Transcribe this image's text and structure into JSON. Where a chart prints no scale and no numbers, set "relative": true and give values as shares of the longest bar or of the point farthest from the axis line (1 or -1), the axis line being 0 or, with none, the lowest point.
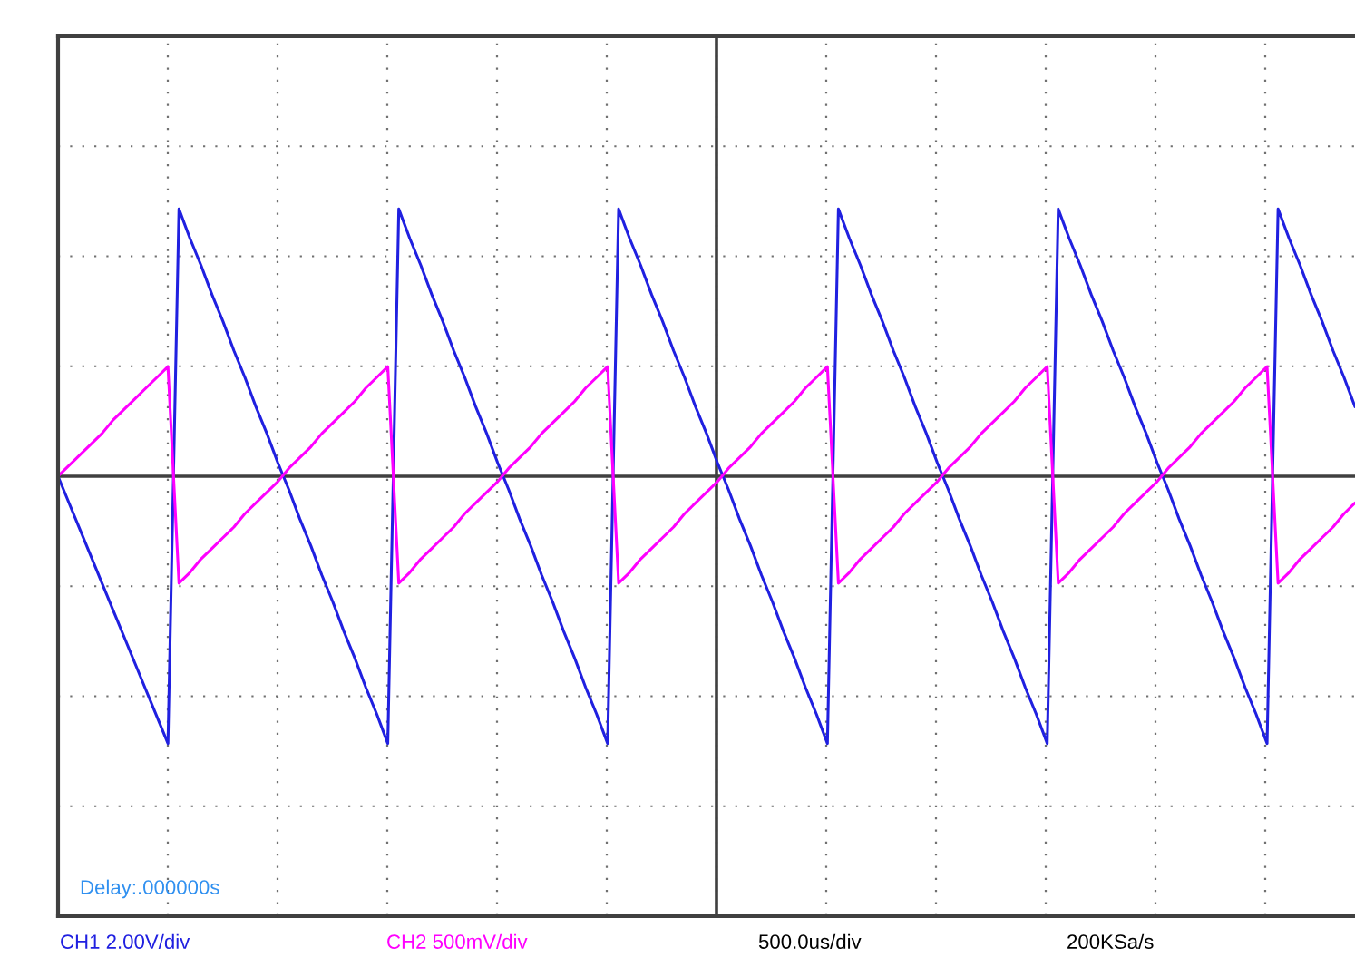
{
  "chart_data": {
    "type": "line",
    "relative": true,
    "grid": true,
    "marker": "none",
    "line_style": "solid",
    "categories": [
      null,
      null,
      null,
      null,
      null,
      null,
      null,
      null,
      null,
      null,
      null,
      null,
      null,
      null,
      null,
      null,
      null,
      null,
      null,
      null,
      null,
      null,
      null,
      null,
      null,
      null,
      null,
      null,
      null,
      null,
      null,
      null,
      null,
      null,
      null,
      null,
      null,
      null,
      null,
      null,
      null,
      null,
      null,
      null,
      null,
      null,
      null,
      null,
      null,
      null,
      null,
      null,
      null,
      null,
      null,
      null,
      null,
      null,
      null,
      null,
      null,
      null,
      null,
      null,
      null,
      null,
      null,
      null,
      null,
      null,
      null,
      null,
      null,
      null,
      null,
      null,
      null,
      null,
      null,
      null,
      null,
      null,
      null,
      null,
      null,
      null,
      null,
      null,
      null,
      null,
      null,
      null,
      null,
      null,
      null,
      null,
      null,
      null,
      null,
      null,
      null,
      null,
      null,
      null,
      null,
      null,
      null,
      null,
      null,
      null,
      null,
      null,
      null,
      null,
      null,
      null,
      null,
      null,
      null
    ],
    "series": [
      {
        "color": "#2020e0",
        "values": [
          0,
          -0.1,
          -0.2,
          -0.3,
          -0.4,
          -0.5,
          -0.6,
          -0.7,
          -0.8,
          -0.9,
          -1,
          1,
          0.89,
          0.79,
          0.68,
          0.58,
          0.47,
          0.37,
          0.26,
          0.16,
          0.05,
          -0.05,
          -0.16,
          -0.26,
          -0.37,
          -0.47,
          -0.58,
          -0.68,
          -0.79,
          -0.89,
          -1,
          1,
          0.89,
          0.79,
          0.68,
          0.58,
          0.47,
          0.37,
          0.26,
          0.16,
          0.05,
          -0.05,
          -0.16,
          -0.26,
          -0.37,
          -0.47,
          -0.58,
          -0.68,
          -0.79,
          -0.89,
          -1,
          1,
          0.89,
          0.79,
          0.68,
          0.58,
          0.47,
          0.37,
          0.26,
          0.16,
          0.05,
          -0.05,
          -0.16,
          -0.26,
          -0.37,
          -0.47,
          -0.58,
          -0.68,
          -0.79,
          -0.89,
          -1,
          1,
          0.89,
          0.79,
          0.68,
          0.58,
          0.47,
          0.37,
          0.26,
          0.16,
          0.05,
          -0.05,
          -0.16,
          -0.26,
          -0.37,
          -0.47,
          -0.58,
          -0.68,
          -0.79,
          -0.89,
          -1,
          1,
          0.89,
          0.79,
          0.68,
          0.58,
          0.47,
          0.37,
          0.26,
          0.16,
          0.05,
          -0.05,
          -0.16,
          -0.26,
          -0.37,
          -0.47,
          -0.58,
          -0.68,
          -0.79,
          -0.89,
          -1,
          1,
          0.89,
          0.79,
          0.68,
          0.58,
          0.47,
          0.37,
          0.26
        ]
      },
      {
        "color": "#ff00ff",
        "values": [
          0,
          0.04,
          0.08,
          0.12,
          0.16,
          0.21,
          0.25,
          0.29,
          0.33,
          0.37,
          0.41,
          -0.4,
          -0.36,
          -0.31,
          -0.27,
          -0.23,
          -0.19,
          -0.14,
          -0.1,
          -0.06,
          -0.02,
          0.03,
          0.07,
          0.11,
          0.16,
          0.2,
          0.24,
          0.28,
          0.33,
          0.37,
          0.41,
          -0.4,
          -0.36,
          -0.31,
          -0.27,
          -0.23,
          -0.19,
          -0.14,
          -0.1,
          -0.06,
          -0.02,
          0.03,
          0.07,
          0.11,
          0.16,
          0.2,
          0.24,
          0.28,
          0.33,
          0.37,
          0.41,
          -0.4,
          -0.36,
          -0.31,
          -0.27,
          -0.23,
          -0.19,
          -0.14,
          -0.1,
          -0.06,
          -0.02,
          0.03,
          0.07,
          0.11,
          0.16,
          0.2,
          0.24,
          0.28,
          0.33,
          0.37,
          0.41,
          -0.4,
          -0.36,
          -0.31,
          -0.27,
          -0.23,
          -0.19,
          -0.14,
          -0.1,
          -0.06,
          -0.02,
          0.03,
          0.07,
          0.11,
          0.16,
          0.2,
          0.24,
          0.28,
          0.33,
          0.37,
          0.41,
          -0.4,
          -0.36,
          -0.31,
          -0.27,
          -0.23,
          -0.19,
          -0.14,
          -0.1,
          -0.06,
          -0.02,
          0.03,
          0.07,
          0.11,
          0.16,
          0.2,
          0.24,
          0.28,
          0.33,
          0.37,
          0.41,
          -0.4,
          -0.36,
          -0.31,
          -0.27,
          -0.23,
          -0.19,
          -0.14,
          -0.1
        ]
      }
    ],
    "annotations": [
      "Delay:.000000s",
      "CH1 2.00V/div",
      "CH2 500mV/div",
      "500.0us/div",
      "200KSa/s"
    ]
  }
}
